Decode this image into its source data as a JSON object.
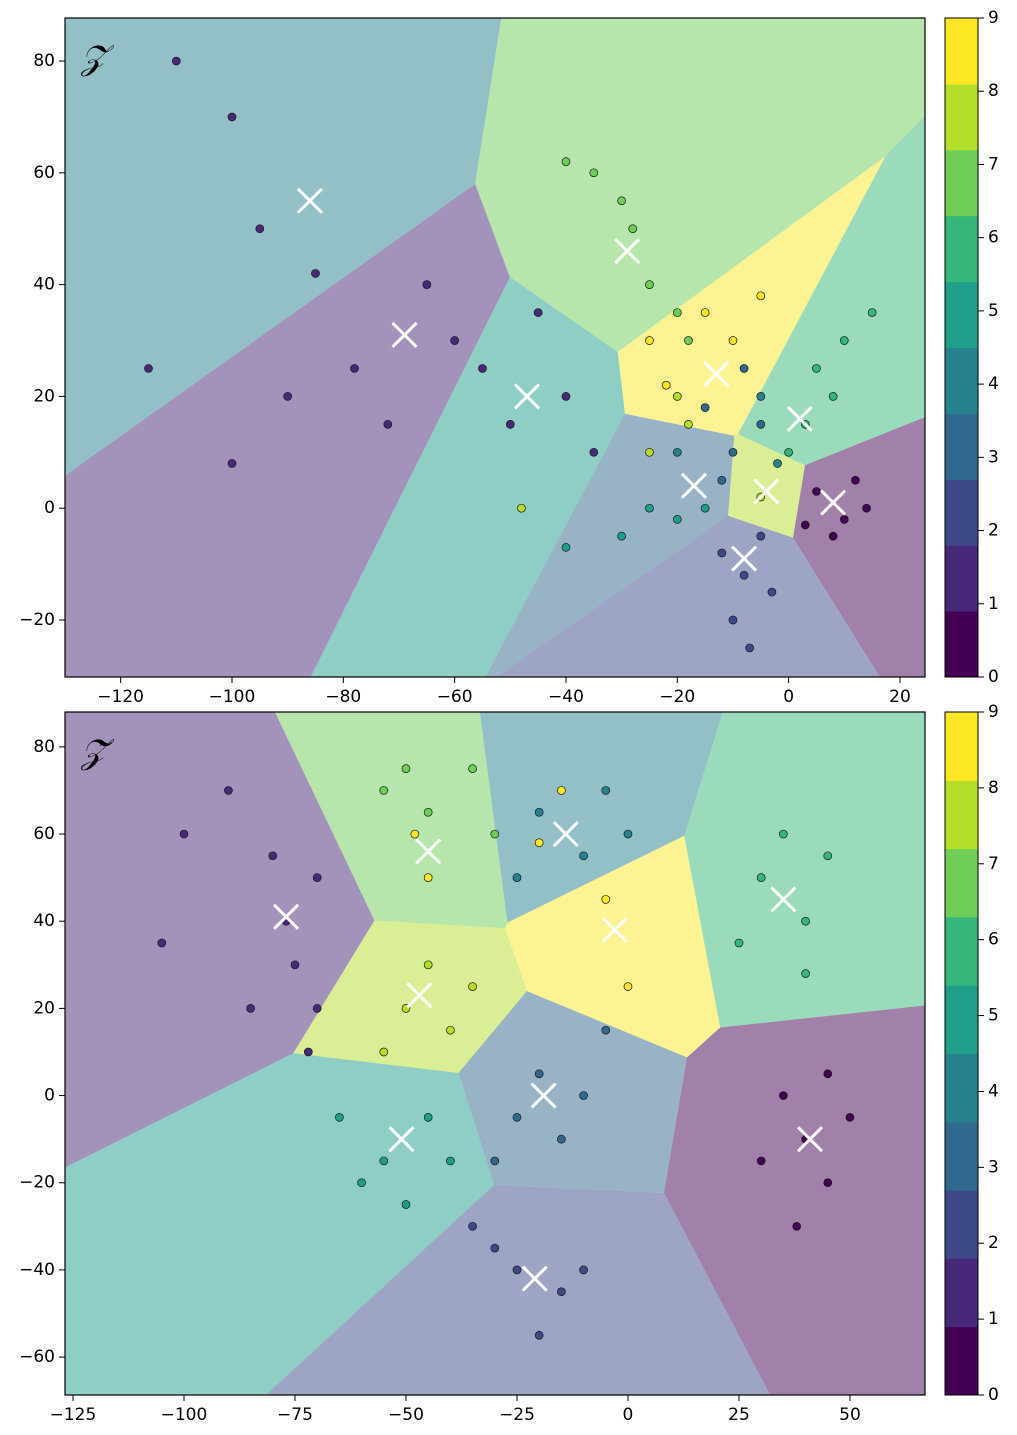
{
  "chart_data": [
    {
      "type": "scatter",
      "label": "𝒵",
      "xlim": [
        -130,
        24.5
      ],
      "ylim": [
        -30.2,
        87.7
      ],
      "xticks": [
        {
          "value": -120,
          "label": "−120"
        },
        {
          "value": -100,
          "label": "−100"
        },
        {
          "value": -80,
          "label": "−80"
        },
        {
          "value": -60,
          "label": "−60"
        },
        {
          "value": -40,
          "label": "−40"
        },
        {
          "value": -20,
          "label": "−20"
        },
        0,
        20
      ],
      "yticks": [
        {
          "value": -20,
          "label": "−20"
        },
        0,
        20,
        40,
        60,
        80
      ],
      "region_opacity": 0.5,
      "centroids": {
        "x": [
          -86,
          -69,
          -47,
          -29,
          -13,
          2,
          -17,
          -4,
          -8,
          8
        ],
        "y": [
          55,
          31,
          20,
          46,
          24,
          16,
          4,
          3,
          -9,
          1
        ],
        "c": [
          4,
          1,
          5,
          7,
          9,
          6,
          3,
          8,
          2,
          0
        ]
      },
      "points": {
        "x": [
          -110,
          -100,
          -95,
          -85,
          -78,
          -72,
          -65,
          -60,
          -55,
          -50,
          -40,
          -35,
          -45,
          -115,
          -90,
          -100,
          5,
          10,
          12,
          8,
          14,
          3,
          -8,
          -10,
          -5,
          -12,
          -7,
          -3,
          -10,
          -5,
          -15,
          -8,
          -12,
          -5,
          -20,
          -2,
          -30,
          -25,
          -20,
          -40,
          -15,
          5,
          10,
          15,
          3,
          8,
          0,
          -35,
          -30,
          -25,
          -20,
          -40,
          -28,
          -18,
          -25,
          -18,
          -5,
          -20,
          -48,
          -25,
          -15,
          -10,
          -5,
          -22
        ],
        "y": [
          80,
          70,
          50,
          42,
          25,
          15,
          40,
          30,
          25,
          15,
          20,
          10,
          35,
          25,
          20,
          8,
          3,
          -2,
          5,
          -5,
          0,
          -3,
          -12,
          -20,
          -5,
          -8,
          -25,
          -15,
          10,
          15,
          18,
          25,
          5,
          20,
          10,
          8,
          -5,
          0,
          -2,
          -7,
          0,
          25,
          30,
          35,
          15,
          20,
          10,
          60,
          55,
          40,
          35,
          62,
          50,
          30,
          10,
          15,
          2,
          20,
          0,
          30,
          35,
          30,
          38,
          22
        ],
        "c": [
          1,
          1,
          1,
          1,
          1,
          1,
          1,
          1,
          1,
          1,
          1,
          1,
          1,
          1,
          1,
          1,
          0,
          0,
          0,
          0,
          0,
          0,
          2,
          2,
          2,
          2,
          2,
          2,
          3,
          3,
          3,
          3,
          3,
          4,
          4,
          4,
          5,
          5,
          5,
          5,
          5,
          6,
          6,
          6,
          6,
          6,
          6,
          7,
          7,
          7,
          7,
          7,
          7,
          7,
          8,
          8,
          8,
          8,
          8,
          9,
          9,
          9,
          9,
          9
        ]
      },
      "colorbar": {
        "lim": [
          0,
          9
        ],
        "ticks": [
          0,
          1,
          2,
          3,
          4,
          5,
          6,
          7,
          8,
          9
        ],
        "colors": [
          "#440154",
          "#482878",
          "#3e4989",
          "#31688e",
          "#26828e",
          "#1f9e89",
          "#35b779",
          "#6ece58",
          "#b5de2b",
          "#fde725"
        ]
      }
    },
    {
      "type": "scatter",
      "label": "𝒵̃",
      "xlim": [
        -126.8,
        66.9
      ],
      "ylim": [
        -68.7,
        88
      ],
      "xticks": [
        {
          "value": -125,
          "label": "−125"
        },
        {
          "value": -100,
          "label": "−100"
        },
        {
          "value": -75,
          "label": "−75"
        },
        {
          "value": -50,
          "label": "−50"
        },
        {
          "value": -25,
          "label": "−25"
        },
        0,
        25,
        50
      ],
      "yticks": [
        {
          "value": -60,
          "label": "−60"
        },
        {
          "value": -40,
          "label": "−40"
        },
        {
          "value": -20,
          "label": "−20"
        },
        0,
        20,
        40,
        60,
        80
      ],
      "region_opacity": 0.5,
      "centroids": {
        "x": [
          -77,
          -45,
          -14,
          -3,
          35,
          -47,
          -51,
          -19,
          -21,
          41
        ],
        "y": [
          41,
          56,
          60,
          38,
          45,
          23,
          -10,
          0,
          -42,
          -10
        ],
        "c": [
          1,
          7,
          4,
          9,
          6,
          8,
          5,
          3,
          2,
          0
        ]
      },
      "points": {
        "x": [
          -77,
          -80,
          -70,
          -75,
          -85,
          -100,
          -105,
          -70,
          -90,
          -72,
          -55,
          -45,
          -35,
          -30,
          -50,
          -20,
          -10,
          -25,
          -5,
          0,
          -15,
          -20,
          -45,
          -5,
          0,
          -48,
          30,
          40,
          35,
          45,
          25,
          40,
          -50,
          -40,
          -55,
          -45,
          -35,
          -55,
          -45,
          -60,
          -50,
          -65,
          -40,
          -20,
          -15,
          -25,
          -10,
          -30,
          -5,
          -25,
          -15,
          -30,
          -20,
          -10,
          -35,
          40,
          35,
          45,
          50,
          30,
          45,
          38
        ],
        "y": [
          40,
          55,
          50,
          30,
          20,
          60,
          35,
          20,
          70,
          10,
          70,
          65,
          75,
          60,
          75,
          65,
          55,
          50,
          70,
          60,
          70,
          58,
          50,
          45,
          25,
          60,
          50,
          40,
          60,
          55,
          35,
          28,
          20,
          15,
          10,
          30,
          25,
          -15,
          -5,
          -20,
          -25,
          -5,
          -15,
          5,
          -10,
          -5,
          0,
          -15,
          15,
          -40,
          -45,
          -35,
          -55,
          -40,
          -30,
          -10,
          0,
          -20,
          -5,
          -15,
          5,
          -30
        ],
        "c": [
          1,
          1,
          1,
          1,
          1,
          1,
          1,
          1,
          1,
          1,
          7,
          7,
          7,
          7,
          7,
          4,
          4,
          4,
          4,
          4,
          9,
          9,
          9,
          9,
          9,
          9,
          6,
          6,
          6,
          6,
          6,
          6,
          8,
          8,
          8,
          8,
          8,
          5,
          5,
          5,
          5,
          5,
          5,
          3,
          3,
          3,
          3,
          3,
          3,
          2,
          2,
          2,
          2,
          2,
          2,
          0,
          0,
          0,
          0,
          0,
          0,
          0
        ]
      },
      "colorbar": {
        "lim": [
          0,
          9
        ],
        "ticks": [
          0,
          1,
          2,
          3,
          4,
          5,
          6,
          7,
          8,
          9
        ],
        "colors": [
          "#440154",
          "#482878",
          "#3e4989",
          "#31688e",
          "#26828e",
          "#1f9e89",
          "#35b779",
          "#6ece58",
          "#b5de2b",
          "#fde725"
        ]
      }
    }
  ]
}
